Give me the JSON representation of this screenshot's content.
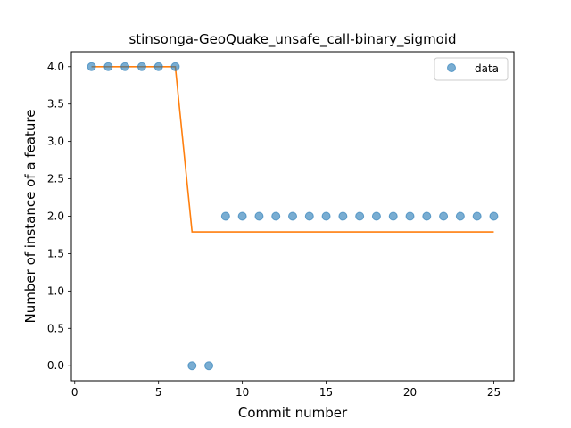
{
  "chart_data": {
    "type": "scatter",
    "title": "stinsonga-GeoQuake_unsafe_call-binary_sigmoid",
    "xlabel": "Commit number",
    "ylabel": "Number of instance of a feature",
    "xlim": [
      -0.2,
      26.2
    ],
    "ylim": [
      -0.2,
      4.2
    ],
    "xticks": [
      0,
      5,
      10,
      15,
      20,
      25
    ],
    "xtick_labels": [
      "0",
      "5",
      "10",
      "15",
      "20",
      "25"
    ],
    "yticks": [
      0.0,
      0.5,
      1.0,
      1.5,
      2.0,
      2.5,
      3.0,
      3.5,
      4.0
    ],
    "ytick_labels": [
      "0.0",
      "0.5",
      "1.0",
      "1.5",
      "2.0",
      "2.5",
      "3.0",
      "3.5",
      "4.0"
    ],
    "grid": false,
    "legend_position": "top-right",
    "series": [
      {
        "name": "data",
        "kind": "scatter",
        "color": "#1f77b4",
        "x": [
          1,
          2,
          3,
          4,
          5,
          6,
          7,
          8,
          9,
          10,
          11,
          12,
          13,
          14,
          15,
          16,
          17,
          18,
          19,
          20,
          21,
          22,
          23,
          24,
          25
        ],
        "y": [
          4,
          4,
          4,
          4,
          4,
          4,
          0,
          0,
          2,
          2,
          2,
          2,
          2,
          2,
          2,
          2,
          2,
          2,
          2,
          2,
          2,
          2,
          2,
          2,
          2
        ]
      },
      {
        "kind": "line",
        "color": "#ff7f0e",
        "x": [
          1,
          2,
          3,
          4,
          5,
          6,
          7,
          8,
          9,
          10,
          11,
          12,
          13,
          14,
          15,
          16,
          17,
          18,
          19,
          20,
          21,
          22,
          23,
          24,
          25
        ],
        "y": [
          4,
          4,
          4,
          4,
          4,
          4,
          1.79,
          1.79,
          1.79,
          1.79,
          1.79,
          1.79,
          1.79,
          1.79,
          1.79,
          1.79,
          1.79,
          1.79,
          1.79,
          1.79,
          1.79,
          1.79,
          1.79,
          1.79,
          1.79
        ]
      }
    ]
  }
}
